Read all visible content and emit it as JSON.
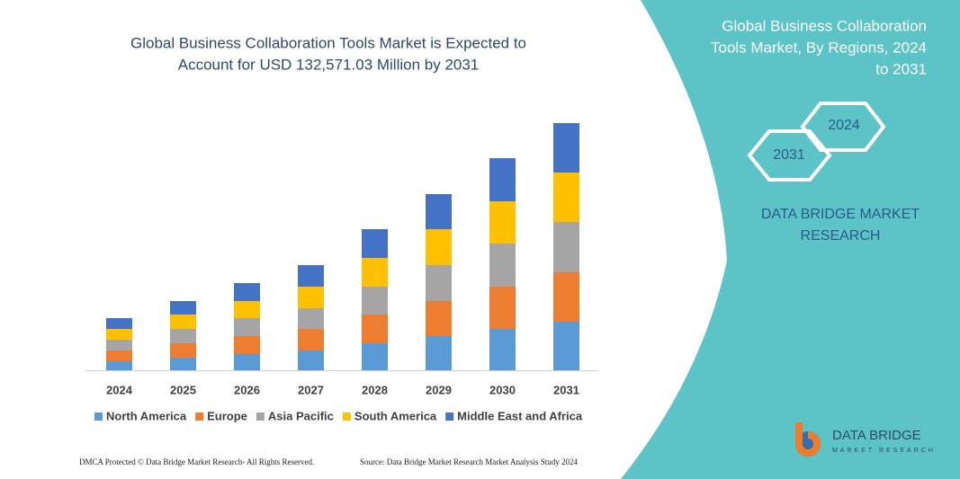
{
  "chart_data": {
    "type": "stacked_bar",
    "title": [
      "Global Business Collaboration Tools Market is Expected to",
      "Account for USD 132,571.03 Million by 2031"
    ],
    "categories": [
      "2024",
      "2025",
      "2026",
      "2027",
      "2028",
      "2029",
      "2030",
      "2031"
    ],
    "series": [
      {
        "name": "North America",
        "color": "#5b9bd5",
        "values": [
          10,
          14,
          18,
          22,
          30,
          38,
          46,
          54
        ]
      },
      {
        "name": "Europe",
        "color": "#ed7d31",
        "values": [
          12,
          16,
          20,
          24,
          32,
          39,
          47,
          55
        ]
      },
      {
        "name": "Asia Pacific",
        "color": "#a5a5a5",
        "values": [
          12,
          16,
          20,
          23,
          31,
          40,
          48,
          56
        ]
      },
      {
        "name": "South America",
        "color": "#ffc000",
        "values": [
          12,
          16,
          19,
          24,
          32,
          40,
          47,
          55
        ]
      },
      {
        "name": "Middle East and Africa",
        "color": "#4472c4",
        "values": [
          12,
          15,
          20,
          24,
          32,
          39,
          48,
          55
        ]
      }
    ]
  },
  "side_panel": {
    "title": [
      "Global Business Collaboration",
      "Tools Market, By Regions, 2024",
      "to 2031"
    ],
    "hexagon_start": "2024",
    "hexagon_end": "2031",
    "brand": [
      "DATA BRIDGE MARKET",
      "RESEARCH"
    ]
  },
  "logo": {
    "name": "DATA BRIDGE",
    "tagline": "MARKET RESEARCH"
  },
  "footer": {
    "left": "DMCA Protected © Data Bridge Market Research- All Rights Reserved.",
    "right": "Source: Data Bridge Market Research Market Analysis Study 2024"
  }
}
